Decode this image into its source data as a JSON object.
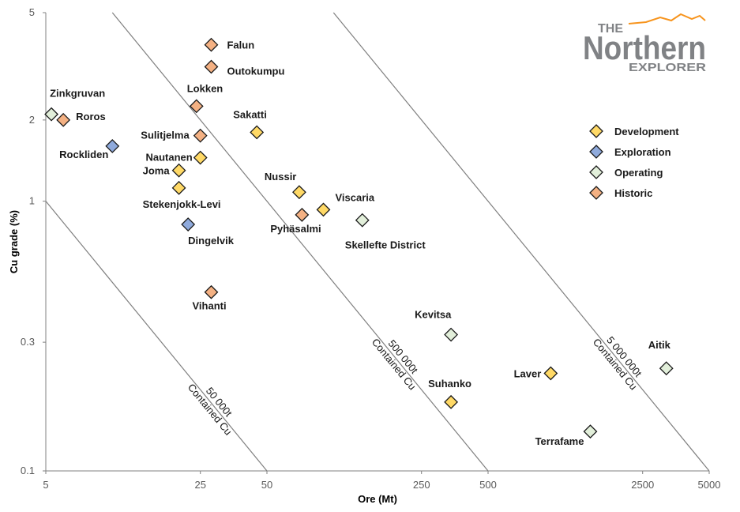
{
  "chart_data": {
    "type": "scatter",
    "xlabel": "Ore (Mt)",
    "ylabel": "Cu grade (%)",
    "xscale": "log",
    "yscale": "log",
    "xlim": [
      5,
      5000
    ],
    "ylim": [
      0.1,
      5
    ],
    "x_ticks": [
      "5",
      "25",
      "50",
      "250",
      "500",
      "2500",
      "5000"
    ],
    "y_ticks": [
      "0.1",
      "0.3",
      "1",
      "2",
      "5"
    ],
    "grid": false,
    "legend_position": "top-right",
    "categories": [
      {
        "name": "Development",
        "color": "#ffd966"
      },
      {
        "name": "Exploration",
        "color": "#8faadc"
      },
      {
        "name": "Operating",
        "color": "#e2efda"
      },
      {
        "name": "Historic",
        "color": "#f4b183"
      }
    ],
    "points": [
      {
        "label": "Falun",
        "x": 28,
        "y": 3.8,
        "category": "Historic"
      },
      {
        "label": "Outokumpu",
        "x": 28,
        "y": 3.15,
        "category": "Historic"
      },
      {
        "label": "Lokken",
        "x": 24,
        "y": 2.25,
        "category": "Historic"
      },
      {
        "label": "Sakatti",
        "x": 45,
        "y": 1.8,
        "category": "Development"
      },
      {
        "label": "Zinkgruvan",
        "x": 5.3,
        "y": 2.1,
        "category": "Operating"
      },
      {
        "label": "Roros",
        "x": 6,
        "y": 2.0,
        "category": "Historic"
      },
      {
        "label": "Sulitjelma",
        "x": 25,
        "y": 1.75,
        "category": "Historic"
      },
      {
        "label": "Rockliden",
        "x": 10,
        "y": 1.6,
        "category": "Exploration"
      },
      {
        "label": "Nautanen",
        "x": 25,
        "y": 1.45,
        "category": "Development"
      },
      {
        "label": "Joma",
        "x": 20,
        "y": 1.3,
        "category": "Development"
      },
      {
        "label": "Stekenjokk-Levi",
        "x": 20,
        "y": 1.12,
        "category": "Development"
      },
      {
        "label": "Nussir",
        "x": 70,
        "y": 1.08,
        "category": "Development"
      },
      {
        "label": "Viscaria",
        "x": 90,
        "y": 0.93,
        "category": "Development"
      },
      {
        "label": "Pyhäsalmi",
        "x": 72,
        "y": 0.89,
        "category": "Historic"
      },
      {
        "label": "Skellefte District",
        "x": 135,
        "y": 0.85,
        "category": "Operating"
      },
      {
        "label": "Dingelvik",
        "x": 22,
        "y": 0.82,
        "category": "Exploration"
      },
      {
        "label": "Vihanti",
        "x": 28,
        "y": 0.46,
        "category": "Historic"
      },
      {
        "label": "Kevitsa",
        "x": 340,
        "y": 0.32,
        "category": "Operating"
      },
      {
        "label": "Suhanko",
        "x": 340,
        "y": 0.18,
        "category": "Development"
      },
      {
        "label": "Laver",
        "x": 960,
        "y": 0.23,
        "category": "Development"
      },
      {
        "label": "Aitik",
        "x": 3200,
        "y": 0.24,
        "category": "Operating"
      },
      {
        "label": "Terrafame",
        "x": 1450,
        "y": 0.14,
        "category": "Operating"
      }
    ],
    "isolines": [
      {
        "contained_cu_t": 50000,
        "line1": "50 000t",
        "line2": "Contained Cu"
      },
      {
        "contained_cu_t": 500000,
        "line1": "500 000t",
        "line2": "Contained Cu"
      },
      {
        "contained_cu_t": 5000000,
        "line1": "5 000 000t",
        "line2": "Contained Cu"
      }
    ]
  },
  "logo": {
    "line1": "THE",
    "line2": "Northern",
    "line3": "EXPLORER",
    "colors": {
      "gray": "#808285",
      "orange": "#f7941d"
    }
  }
}
